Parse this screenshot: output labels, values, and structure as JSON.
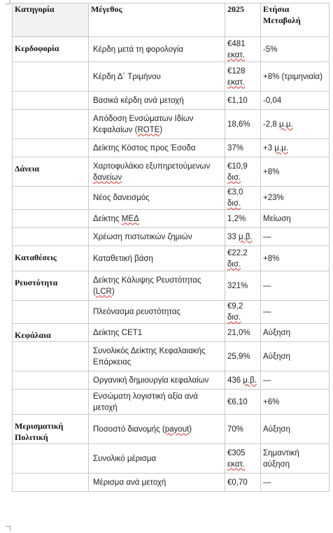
{
  "header": {
    "category": "Κατηγορία",
    "metric": "Μέγεθος",
    "value": "2025",
    "change": "Ετήσια Μεταβολή"
  },
  "rows": [
    {
      "category": "Κερδοφορία",
      "metric": "Κέρδη μετά τη φορολογία",
      "value": "€481 εκατ.",
      "change": "-5%"
    },
    {
      "category": "",
      "metric": "Κέρδη Δ΄ Τριμήνου",
      "value": "€128 εκατ.",
      "change": "+8% (τριμηνιαία)"
    },
    {
      "category": "",
      "metric": "Βασικά κέρδη ανά μετοχή",
      "value": "€1,10",
      "change": "-0,04"
    },
    {
      "category": "",
      "metric": "Απόδοση Ενσώματων Ιδίων Κεφαλαίων (ROTE)",
      "value": "18,6%",
      "change": "-2,8 μ.μ."
    },
    {
      "category": "",
      "metric": "Δείκτης Κόστος προς Έσοδα",
      "value": "37%",
      "change": "+3 μ.μ."
    },
    {
      "category": "Δάνεια",
      "metric": "Χαρτοφυλάκιο εξυπηρετούμενων δανείων",
      "value": "€10,9 δισ.",
      "change": "+8%"
    },
    {
      "category": "",
      "metric": "Νέος δανεισμός",
      "value": "€3,0 δισ.",
      "change": "+23%"
    },
    {
      "category": "",
      "metric": "Δείκτης ΜΕΔ",
      "value": "1,2%",
      "change": "Μείωση"
    },
    {
      "category": "",
      "metric": "Χρέωση πιστωτικών ζημιών",
      "value": "33 μ.β.",
      "change": "—"
    },
    {
      "category": "Καταθέσεις",
      "metric": "Καταθετική βάση",
      "value": "€22,2 δισ.",
      "change": "+8%"
    },
    {
      "category": "Ρευστότητα",
      "metric": "Δείκτης Κάλυψης Ρευστότητας (LCR)",
      "value": "321%",
      "change": "—"
    },
    {
      "category": "",
      "metric": "Πλεόνασμα ρευστότητας",
      "value": "€9,2 δισ.",
      "change": "—"
    },
    {
      "category": "Κεφάλαια",
      "metric": "Δείκτης CET1",
      "value": "21,0%",
      "change": "Αύξηση"
    },
    {
      "category": "",
      "metric": "Συνολικός Δείκτης Κεφαλαιακής Επάρκειας",
      "value": "25,9%",
      "change": "Αύξηση"
    },
    {
      "category": "",
      "metric": "Οργανική δημιουργία κεφαλαίων",
      "value": "436 μ.β.",
      "change": "—"
    },
    {
      "category": "",
      "metric": "Ενσώματη λογιστική αξία ανά μετοχή",
      "value": "€6,10",
      "change": "+6%"
    },
    {
      "category": "Μερισματική Πολιτική",
      "metric": "Ποσοστό διανομής (payout)",
      "value": "70%",
      "change": "Αύξηση"
    },
    {
      "category": "",
      "metric": "Συνολικό μέρισμα",
      "value": "€305 εκατ.",
      "change": "Σημαντική αύξηση"
    },
    {
      "category": "",
      "metric": "Μέρισμα ανά μετοχή",
      "value": "€0,70",
      "change": "—"
    }
  ]
}
